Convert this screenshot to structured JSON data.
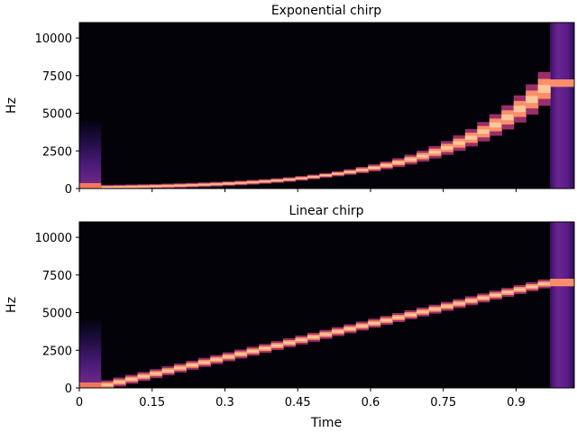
{
  "chart_data": [
    {
      "type": "heatmap",
      "title": "Exponential chirp",
      "xlabel": "",
      "ylabel": "Hz",
      "xlim": [
        0,
        1.02
      ],
      "ylim": [
        0,
        11025
      ],
      "xticks": [
        0,
        0.15,
        0.3,
        0.45,
        0.6,
        0.75,
        0.9
      ],
      "xtick_labels": [],
      "yticks": [
        0,
        2500,
        5000,
        7500,
        10000
      ],
      "ytick_labels": [
        "0",
        "2500",
        "5000",
        "7500",
        "10000"
      ],
      "colormap": "magma",
      "chirp": {
        "kind": "exponential",
        "f0": 110,
        "f1": 7000,
        "t0": 0.045,
        "t1": 0.97
      },
      "onset_burst_end": 0.045,
      "offset_burst_start": 0.97
    },
    {
      "type": "heatmap",
      "title": "Linear chirp",
      "xlabel": "Time",
      "ylabel": "Hz",
      "xlim": [
        0,
        1.02
      ],
      "ylim": [
        0,
        11025
      ],
      "xticks": [
        0,
        0.15,
        0.3,
        0.45,
        0.6,
        0.75,
        0.9
      ],
      "xtick_labels": [
        "0",
        "0.15",
        "0.3",
        "0.45",
        "0.6",
        "0.75",
        "0.9"
      ],
      "yticks": [
        0,
        2500,
        5000,
        7500,
        10000
      ],
      "ytick_labels": [
        "0",
        "2500",
        "5000",
        "7500",
        "10000"
      ],
      "colormap": "magma",
      "chirp": {
        "kind": "linear",
        "f0": 110,
        "f1": 7000,
        "t0": 0.045,
        "t1": 0.97
      },
      "onset_burst_end": 0.045,
      "offset_burst_start": 0.97
    }
  ]
}
